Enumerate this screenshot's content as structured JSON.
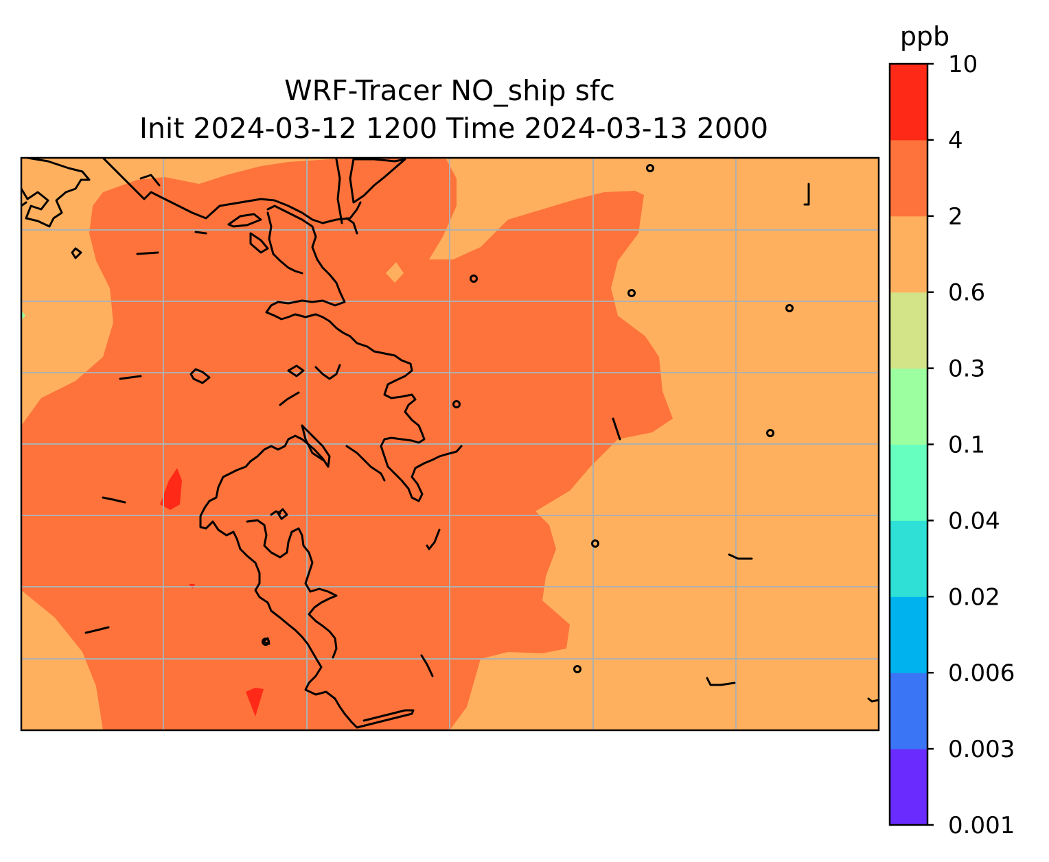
{
  "title": {
    "line1": "WRF-Tracer NO_ship sfc",
    "line2": "Init 2024-03-12 1200 Time 2024-03-13 2000"
  },
  "colorbar": {
    "unit": "ppb",
    "levels": [
      "0.001",
      "0.003",
      "0.006",
      "0.02",
      "0.04",
      "0.1",
      "0.3",
      "0.6",
      "2",
      "4",
      "10"
    ],
    "colors": [
      "#6a2bff",
      "#3a75f5",
      "#00b3ee",
      "#2ee0d6",
      "#66ffc0",
      "#9cffa0",
      "#d2e388",
      "#ffb05e",
      "#fd733b",
      "#fe2a17"
    ]
  },
  "map": {
    "colors": {
      "background_0.6_to_2": "#ffb05e",
      "plume_2_to_4": "#fd733b",
      "spots_4_to_10": "#fe2a17",
      "coastline": "#000000",
      "gridlines": "#b0b0b0"
    },
    "gridlines": "on",
    "coastlines": "on"
  }
}
